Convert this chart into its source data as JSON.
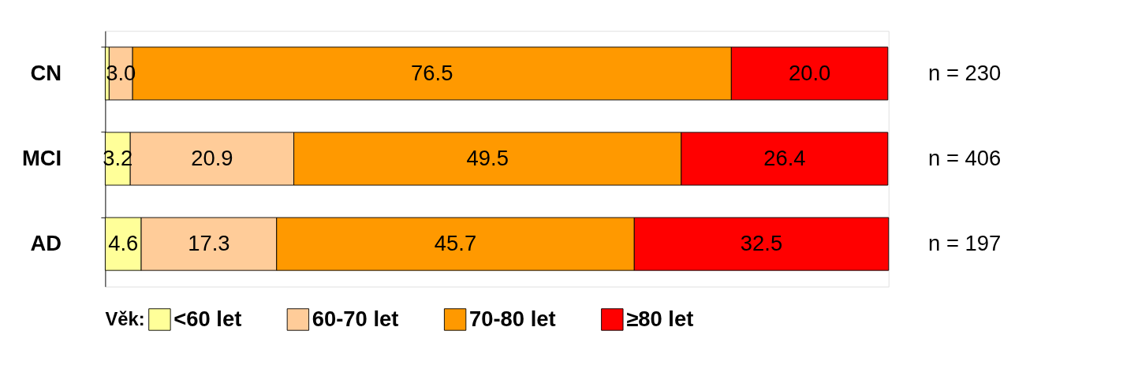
{
  "chart_data": {
    "type": "bar",
    "orientation": "horizontal",
    "stacked": true,
    "legend_title": "Věk:",
    "legend": "bottom",
    "categories": [
      "CN",
      "MCI",
      "AD"
    ],
    "series": [
      {
        "name": "<60 let",
        "color": "#ffff99",
        "values": [
          0.5,
          3.2,
          4.6
        ],
        "value_labels": [
          null,
          "3.2",
          "4.6"
        ]
      },
      {
        "name": "60-70 let",
        "color": "#ffcc99",
        "values": [
          3.0,
          20.9,
          17.3
        ],
        "value_labels": [
          "3.0",
          "20.9",
          "17.3"
        ]
      },
      {
        "name": "70-80 let",
        "color": "#ff9900",
        "values": [
          76.5,
          49.5,
          45.7
        ],
        "value_labels": [
          "76.5",
          "49.5",
          "45.7"
        ]
      },
      {
        "name": "≥80 let",
        "color": "#ff0000",
        "values": [
          20.0,
          26.4,
          32.5
        ],
        "value_labels": [
          "20.0",
          "26.4",
          "32.5"
        ]
      }
    ],
    "annotations": [
      "n = 230",
      "n = 406",
      "n = 197"
    ]
  }
}
